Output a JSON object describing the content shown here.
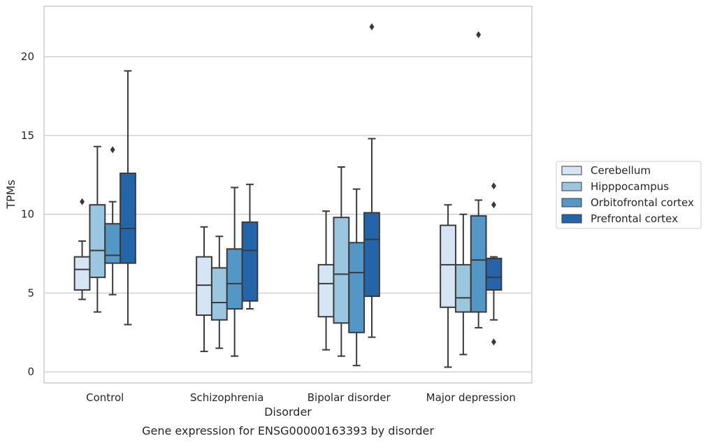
{
  "chart_data": {
    "type": "box",
    "title": "",
    "caption": "Gene expression for ENSG00000163393 by disorder",
    "xlabel": "Disorder",
    "ylabel": "TPMs",
    "ylim": [
      -0.7,
      23.2
    ],
    "yticks": [
      0,
      5,
      10,
      15,
      20
    ],
    "grid": "horizontal",
    "legend_position": "right",
    "categories": [
      "Control",
      "Schizophrenia",
      "Bipolar disorder",
      "Major depression"
    ],
    "series": [
      {
        "name": "Cerebellum",
        "color": "#d6e5f3",
        "boxes": [
          {
            "whisker_low": 4.6,
            "q1": 5.2,
            "median": 6.5,
            "q3": 7.3,
            "whisker_high": 8.3,
            "outliers": [
              10.8
            ]
          },
          {
            "whisker_low": 1.3,
            "q1": 3.6,
            "median": 5.5,
            "q3": 7.3,
            "whisker_high": 9.2,
            "outliers": []
          },
          {
            "whisker_low": 1.4,
            "q1": 3.5,
            "median": 5.6,
            "q3": 6.8,
            "whisker_high": 10.2,
            "outliers": []
          },
          {
            "whisker_low": 0.3,
            "q1": 4.1,
            "median": 6.8,
            "q3": 9.3,
            "whisker_high": 10.6,
            "outliers": []
          }
        ]
      },
      {
        "name": "Hipppocampus",
        "color": "#9ac6df",
        "boxes": [
          {
            "whisker_low": 3.8,
            "q1": 6.0,
            "median": 7.7,
            "q3": 10.6,
            "whisker_high": 14.3,
            "outliers": []
          },
          {
            "whisker_low": 1.5,
            "q1": 3.3,
            "median": 4.4,
            "q3": 6.6,
            "whisker_high": 8.6,
            "outliers": []
          },
          {
            "whisker_low": 1.0,
            "q1": 3.1,
            "median": 6.2,
            "q3": 9.8,
            "whisker_high": 13.0,
            "outliers": []
          },
          {
            "whisker_low": 1.1,
            "q1": 3.8,
            "median": 4.7,
            "q3": 6.8,
            "whisker_high": 10.0,
            "outliers": []
          }
        ]
      },
      {
        "name": "Orbitofrontal cortex",
        "color": "#5397c7",
        "boxes": [
          {
            "whisker_low": 4.9,
            "q1": 6.9,
            "median": 7.4,
            "q3": 9.4,
            "whisker_high": 10.8,
            "outliers": [
              14.1
            ]
          },
          {
            "whisker_low": 1.0,
            "q1": 4.0,
            "median": 5.6,
            "q3": 7.8,
            "whisker_high": 11.7,
            "outliers": []
          },
          {
            "whisker_low": 0.4,
            "q1": 2.5,
            "median": 6.3,
            "q3": 8.2,
            "whisker_high": 11.6,
            "outliers": []
          },
          {
            "whisker_low": 2.8,
            "q1": 3.8,
            "median": 7.1,
            "q3": 9.9,
            "whisker_high": 10.9,
            "outliers": [
              21.4
            ]
          }
        ]
      },
      {
        "name": "Prefrontal cortex",
        "color": "#2464a9",
        "boxes": [
          {
            "whisker_low": 3.0,
            "q1": 6.9,
            "median": 9.1,
            "q3": 12.6,
            "whisker_high": 19.1,
            "outliers": []
          },
          {
            "whisker_low": 4.0,
            "q1": 4.5,
            "median": 7.7,
            "q3": 9.5,
            "whisker_high": 11.9,
            "outliers": []
          },
          {
            "whisker_low": 2.2,
            "q1": 4.8,
            "median": 8.4,
            "q3": 10.1,
            "whisker_high": 14.8,
            "outliers": [
              21.9
            ]
          },
          {
            "whisker_low": 3.3,
            "q1": 5.2,
            "median": 6.0,
            "q3": 7.2,
            "whisker_high": 7.3,
            "outliers": [
              11.8,
              10.6,
              1.9
            ]
          }
        ]
      }
    ]
  }
}
